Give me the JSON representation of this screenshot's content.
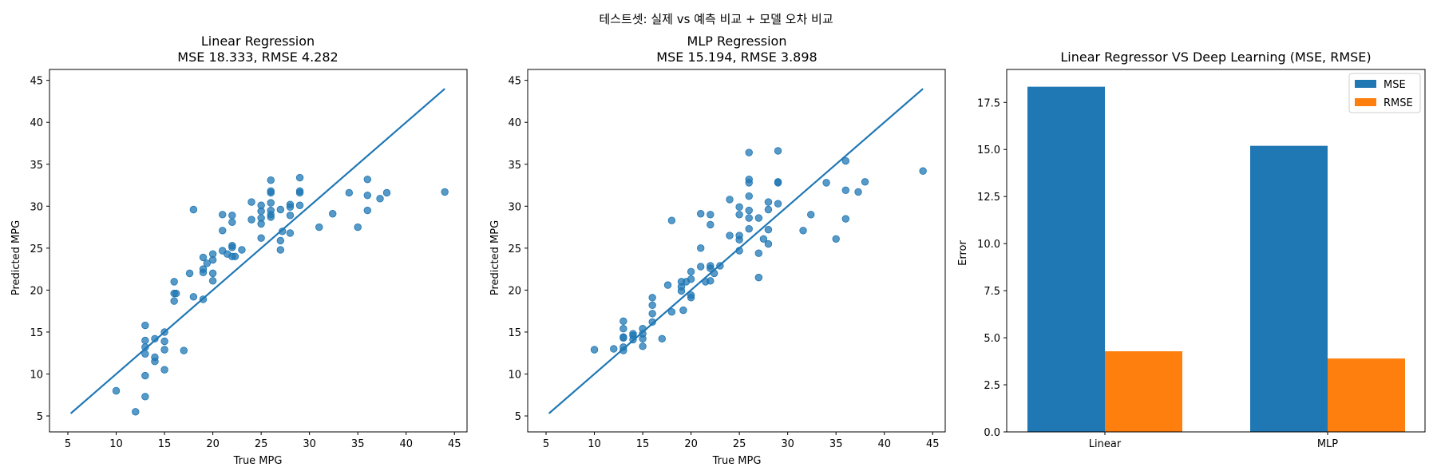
{
  "figure_title": "테스트셋: 실제 vs 예측 비교 + 모델 오차 비교",
  "colors": {
    "point": "#1f77b4",
    "line": "#1f77b4",
    "mse": "#1f77b4",
    "rmse": "#ff7f0e"
  },
  "chart_data": [
    {
      "type": "scatter",
      "title_line1": "Linear Regression",
      "title_line2": "MSE 18.333, RMSE 4.282",
      "xlabel": "True MPG",
      "ylabel": "Predicted MPG",
      "xlim": [
        3.1,
        46.3
      ],
      "ylim": [
        3.1,
        46.3
      ],
      "xticks": [
        5,
        10,
        15,
        20,
        25,
        30,
        35,
        40,
        45
      ],
      "yticks": [
        5,
        10,
        15,
        20,
        25,
        30,
        35,
        40,
        45
      ],
      "reference_line": [
        [
          5.3,
          5.3
        ],
        [
          44.0,
          44.0
        ]
      ],
      "points": [
        [
          10,
          8.0
        ],
        [
          12,
          5.5
        ],
        [
          13,
          7.3
        ],
        [
          13,
          9.8
        ],
        [
          13,
          12.4
        ],
        [
          13,
          13.2
        ],
        [
          13,
          14.0
        ],
        [
          13,
          15.8
        ],
        [
          14,
          11.5
        ],
        [
          14,
          12.0
        ],
        [
          14,
          14.2
        ],
        [
          15,
          10.5
        ],
        [
          15,
          12.9
        ],
        [
          15,
          13.9
        ],
        [
          15,
          15.0
        ],
        [
          16,
          18.7
        ],
        [
          16,
          19.6
        ],
        [
          16,
          21.0
        ],
        [
          16.2,
          19.6
        ],
        [
          17,
          12.8
        ],
        [
          17.6,
          22.0
        ],
        [
          18,
          19.2
        ],
        [
          18,
          29.6
        ],
        [
          19,
          18.9
        ],
        [
          19,
          22.1
        ],
        [
          19,
          22.5
        ],
        [
          19,
          23.9
        ],
        [
          19.4,
          23.2
        ],
        [
          20,
          21.1
        ],
        [
          20,
          22.0
        ],
        [
          20,
          23.6
        ],
        [
          20,
          24.3
        ],
        [
          21,
          24.7
        ],
        [
          21,
          27.1
        ],
        [
          21,
          29.0
        ],
        [
          21.5,
          24.3
        ],
        [
          22,
          24.0
        ],
        [
          22,
          25.1
        ],
        [
          22,
          25.3
        ],
        [
          22,
          28.1
        ],
        [
          22,
          28.9
        ],
        [
          22.3,
          24.0
        ],
        [
          23,
          24.8
        ],
        [
          24,
          28.4
        ],
        [
          24,
          30.5
        ],
        [
          25,
          26.2
        ],
        [
          25,
          27.9
        ],
        [
          25,
          28.6
        ],
        [
          25,
          29.4
        ],
        [
          25,
          30.1
        ],
        [
          26,
          29.0
        ],
        [
          26,
          29.5
        ],
        [
          26,
          30.4
        ],
        [
          26,
          31.6
        ],
        [
          26,
          31.8
        ],
        [
          26,
          33.1
        ],
        [
          26,
          28.7
        ],
        [
          27,
          24.8
        ],
        [
          27,
          25.9
        ],
        [
          27,
          29.6
        ],
        [
          27.2,
          27.0
        ],
        [
          28,
          26.8
        ],
        [
          28,
          28.9
        ],
        [
          28,
          29.9
        ],
        [
          28,
          30.2
        ],
        [
          29,
          30.1
        ],
        [
          29,
          31.6
        ],
        [
          29,
          31.8
        ],
        [
          29,
          33.4
        ],
        [
          31,
          27.5
        ],
        [
          32.4,
          29.1
        ],
        [
          34.1,
          31.6
        ],
        [
          35,
          27.5
        ],
        [
          36,
          29.5
        ],
        [
          36,
          31.3
        ],
        [
          36,
          33.2
        ],
        [
          37.3,
          30.9
        ],
        [
          38,
          31.6
        ],
        [
          44,
          31.7
        ]
      ]
    },
    {
      "type": "scatter",
      "title_line1": "MLP Regression",
      "title_line2": "MSE 15.194, RMSE 3.898",
      "xlabel": "True MPG",
      "ylabel": "Predicted MPG",
      "xlim": [
        3.1,
        46.3
      ],
      "ylim": [
        3.1,
        46.3
      ],
      "xticks": [
        5,
        10,
        15,
        20,
        25,
        30,
        35,
        40,
        45
      ],
      "yticks": [
        5,
        10,
        15,
        20,
        25,
        30,
        35,
        40,
        45
      ],
      "reference_line": [
        [
          5.3,
          5.3
        ],
        [
          44.0,
          44.0
        ]
      ],
      "points": [
        [
          10,
          12.9
        ],
        [
          12,
          13.0
        ],
        [
          13,
          12.8
        ],
        [
          13,
          13.2
        ],
        [
          13,
          14.3
        ],
        [
          13,
          14.4
        ],
        [
          13,
          15.4
        ],
        [
          13,
          16.3
        ],
        [
          14,
          14.1
        ],
        [
          14,
          14.6
        ],
        [
          14,
          14.8
        ],
        [
          15,
          13.3
        ],
        [
          15,
          14.2
        ],
        [
          15,
          14.8
        ],
        [
          15,
          15.4
        ],
        [
          16,
          16.2
        ],
        [
          16,
          17.2
        ],
        [
          16,
          18.2
        ],
        [
          16,
          19.1
        ],
        [
          17,
          14.2
        ],
        [
          17.6,
          20.6
        ],
        [
          18,
          17.4
        ],
        [
          18,
          28.3
        ],
        [
          19,
          19.9
        ],
        [
          19,
          20.4
        ],
        [
          19,
          21.0
        ],
        [
          19.2,
          17.6
        ],
        [
          19.5,
          21.0
        ],
        [
          20,
          19.1
        ],
        [
          20,
          19.4
        ],
        [
          20,
          21.3
        ],
        [
          20,
          22.2
        ],
        [
          21,
          22.8
        ],
        [
          21,
          25.0
        ],
        [
          21,
          29.1
        ],
        [
          21.5,
          21.0
        ],
        [
          22,
          21.1
        ],
        [
          22,
          22.6
        ],
        [
          22,
          22.9
        ],
        [
          22,
          27.8
        ],
        [
          22,
          29.0
        ],
        [
          22.4,
          22.0
        ],
        [
          23,
          22.9
        ],
        [
          24,
          26.5
        ],
        [
          24,
          30.8
        ],
        [
          25,
          24.7
        ],
        [
          25,
          26.0
        ],
        [
          25,
          26.5
        ],
        [
          25,
          29.0
        ],
        [
          25,
          29.9
        ],
        [
          26,
          27.3
        ],
        [
          26,
          28.6
        ],
        [
          26,
          29.5
        ],
        [
          26,
          31.2
        ],
        [
          26,
          32.8
        ],
        [
          26,
          33.2
        ],
        [
          26,
          36.4
        ],
        [
          27,
          21.5
        ],
        [
          27,
          24.4
        ],
        [
          27,
          28.6
        ],
        [
          27.5,
          26.1
        ],
        [
          28,
          25.5
        ],
        [
          28,
          27.2
        ],
        [
          28,
          29.6
        ],
        [
          28,
          30.5
        ],
        [
          29,
          30.3
        ],
        [
          29,
          32.8
        ],
        [
          29,
          32.9
        ],
        [
          29,
          36.6
        ],
        [
          31.6,
          27.1
        ],
        [
          32.4,
          29.0
        ],
        [
          34,
          32.8
        ],
        [
          35,
          26.1
        ],
        [
          36,
          28.5
        ],
        [
          36,
          31.9
        ],
        [
          36,
          35.4
        ],
        [
          37.3,
          31.7
        ],
        [
          38,
          32.9
        ],
        [
          44,
          34.2
        ]
      ]
    },
    {
      "type": "bar",
      "title": "Linear Regressor VS Deep Learning (MSE, RMSE)",
      "xlabel": "",
      "ylabel": "Error",
      "categories": [
        "Linear",
        "MLP"
      ],
      "ylim": [
        0,
        19.25
      ],
      "yticks": [
        "0.0",
        "2.5",
        "5.0",
        "7.5",
        "10.0",
        "12.5",
        "15.0",
        "17.5"
      ],
      "legend_position": "top-right",
      "series": [
        {
          "name": "MSE",
          "values": [
            18.333,
            15.194
          ]
        },
        {
          "name": "RMSE",
          "values": [
            4.282,
            3.898
          ]
        }
      ]
    }
  ]
}
